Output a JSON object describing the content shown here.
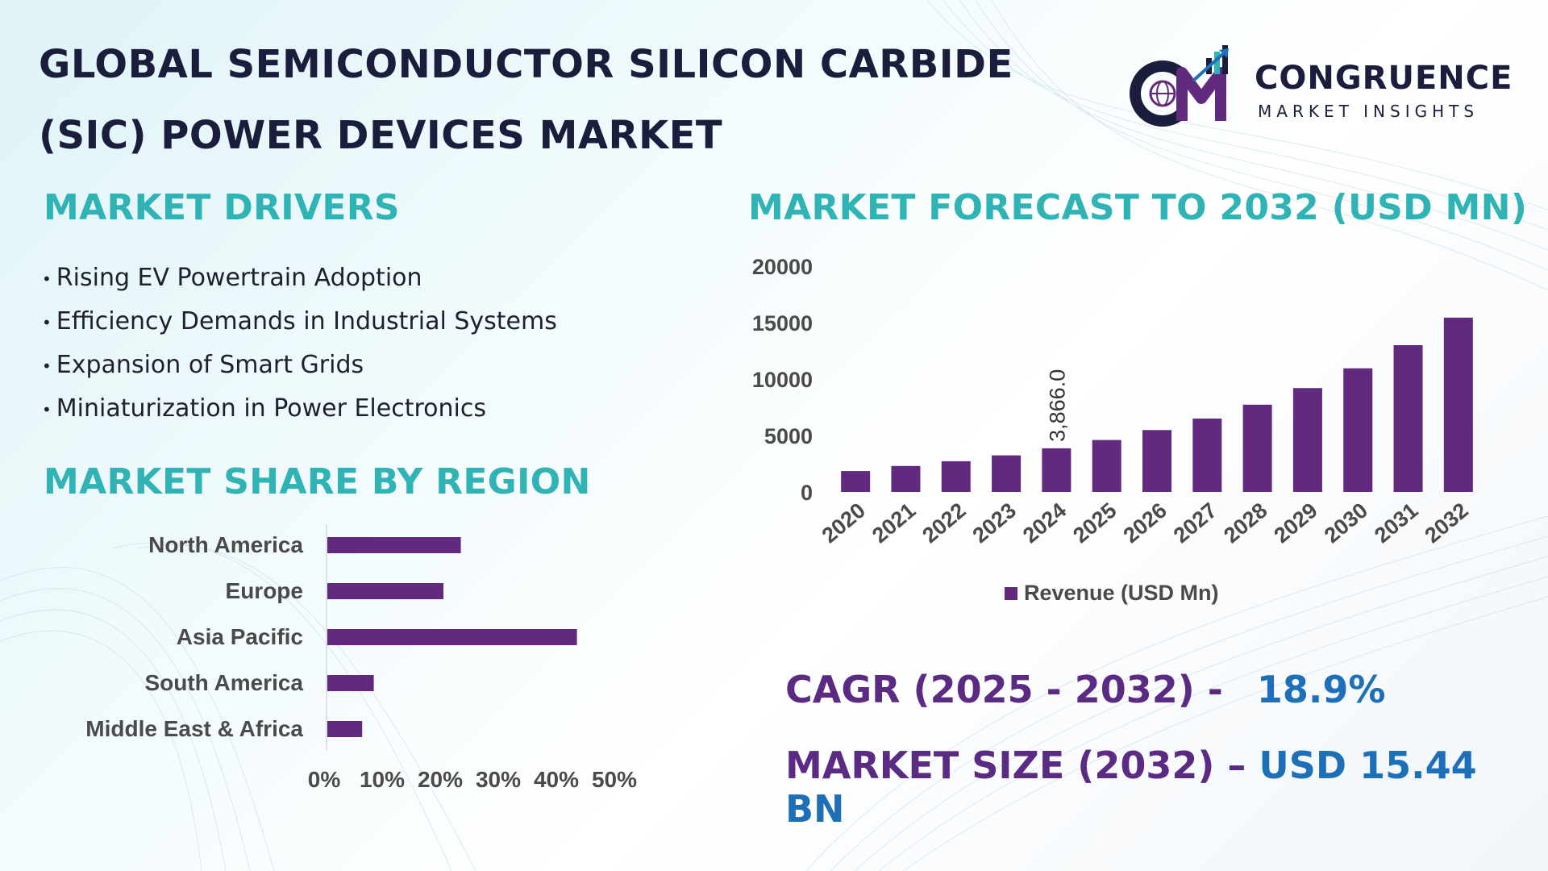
{
  "title": {
    "line1": "GLOBAL SEMICONDUCTOR SILICON CARBIDE",
    "line2": "(SIC) POWER DEVICES MARKET"
  },
  "logo": {
    "name": "CONGRUENCE",
    "tagline": "MARKET INSIGHTS"
  },
  "drivers": {
    "heading": "MARKET DRIVERS",
    "items": [
      "Rising EV Powertrain Adoption",
      "Efficiency Demands in Industrial Systems",
      "Expansion of Smart Grids",
      "Miniaturization in Power Electronics"
    ]
  },
  "forecast_heading": "MARKET FORECAST TO 2032 (USD MN)",
  "region_heading": "MARKET SHARE BY REGION",
  "stats": {
    "cagr_label": "CAGR (2025 - 2032) -",
    "cagr_value": "18.9%",
    "size_label": "MARKET SIZE (2032) –",
    "size_value": "USD 15.44 BN"
  },
  "colors": {
    "bar": "#612a7e",
    "teal": "#2fb3b4",
    "navy": "#1b1d3d",
    "purple_text": "#5b2a83",
    "blue_text": "#1d6fb8",
    "axis_text": "#4a4a4a"
  },
  "chart_data": [
    {
      "type": "bar",
      "title": "MARKET FORECAST TO 2032 (USD MN)",
      "categories": [
        "2020",
        "2021",
        "2022",
        "2023",
        "2024",
        "2025",
        "2026",
        "2027",
        "2028",
        "2029",
        "2030",
        "2031",
        "2032"
      ],
      "series": [
        {
          "name": "Revenue (USD Mn)",
          "values": [
            1850,
            2300,
            2720,
            3240,
            3866,
            4600,
            5480,
            6500,
            7730,
            9200,
            10950,
            13000,
            15440
          ]
        }
      ],
      "data_labels": [
        {
          "category": "2024",
          "text": "3,866.0"
        }
      ],
      "yticks": [
        "20000",
        "15000",
        "10000",
        "5000",
        "0"
      ],
      "ylim": [
        0,
        20000
      ],
      "legend": "bottom",
      "grid": false
    },
    {
      "type": "bar",
      "orientation": "horizontal",
      "title": "MARKET SHARE BY REGION",
      "categories": [
        "North America",
        "Europe",
        "Asia Pacific",
        "South America",
        "Middle East & Africa"
      ],
      "values": [
        23,
        20,
        43,
        8,
        6
      ],
      "xticks": [
        "0%",
        "10%",
        "20%",
        "30%",
        "40%",
        "50%"
      ],
      "xlim": [
        0,
        50
      ],
      "grid": false
    }
  ]
}
